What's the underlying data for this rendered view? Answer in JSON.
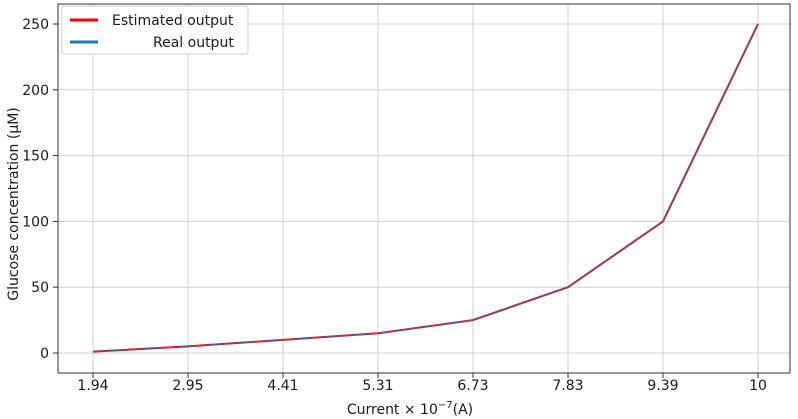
{
  "chart_data": {
    "type": "line",
    "categories": [
      "1.94",
      "2.95",
      "4.41",
      "5.31",
      "6.73",
      "7.83",
      "9.39",
      "10"
    ],
    "series": [
      {
        "name": "Estimated output",
        "color": "#ff0000",
        "values": [
          1,
          5,
          10,
          15,
          25,
          50,
          100,
          250
        ]
      },
      {
        "name": "Real output",
        "color": "#1f77b4",
        "values": [
          1,
          5,
          10,
          15,
          25,
          50,
          100,
          250
        ]
      }
    ],
    "ylabel": "Glucose concentration (μM)",
    "xlabel": {
      "prefix": "Current × 10",
      "exponent": "−7",
      "suffix": "(A)"
    },
    "yticks": [
      0,
      50,
      100,
      150,
      200,
      250
    ],
    "ylim": [
      -10,
      262
    ],
    "grid": true,
    "legend_position": "top-left"
  }
}
